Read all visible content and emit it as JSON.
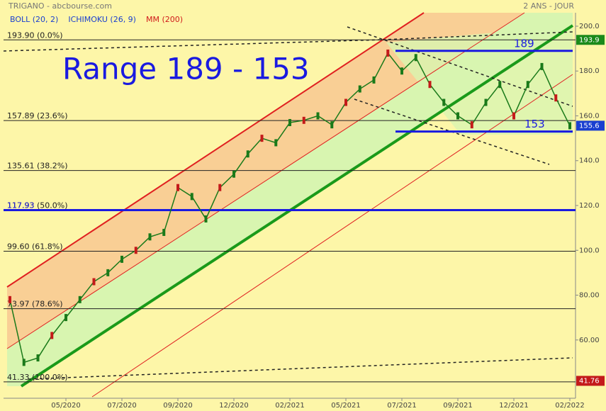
{
  "chart_data": {
    "type": "line",
    "title": "TRIGANO - abcbourse.com",
    "period": "2 ANS - JOUR",
    "indicators": [
      {
        "name": "BOLL (20, 2)",
        "color": "#1a3fd0"
      },
      {
        "name": "ICHIMOKU (26, 9)",
        "color": "#1a3fd0"
      },
      {
        "name": "MM (200)",
        "color": "#d01a1a"
      }
    ],
    "annotation": "Range 189 - 153",
    "categories": [
      "",
      "",
      "",
      "",
      "05/2020",
      "",
      "",
      "",
      "07/2020",
      "",
      "",
      "",
      "09/2020",
      "",
      "",
      "",
      "12/2020",
      "",
      "",
      "",
      "02/2021",
      "",
      "",
      "",
      "05/2021",
      "",
      "",
      "",
      "07/2021",
      "",
      "",
      "",
      "09/2021",
      "",
      "",
      "",
      "12/2021",
      "",
      "",
      "",
      "02/2022"
    ],
    "series": [
      {
        "name": "TRIGANO",
        "color": "#1a7a1a",
        "values": [
          78,
          50,
          52,
          62,
          70,
          78,
          86,
          90,
          96,
          100,
          106,
          108,
          128,
          124,
          114,
          128,
          134,
          143,
          150,
          148,
          157,
          158,
          160,
          156,
          166,
          172,
          176,
          188,
          180,
          186,
          174,
          166,
          160,
          156,
          166,
          174,
          160,
          174,
          182,
          168,
          155.6
        ]
      }
    ],
    "ylim": [
      34,
      206
    ],
    "yticks": [
      {
        "value": 60,
        "label": "60.00"
      },
      {
        "value": 80,
        "label": "80.00"
      },
      {
        "value": 100,
        "label": "100.0"
      },
      {
        "value": 120,
        "label": "120.0"
      },
      {
        "value": 140,
        "label": "140.0"
      },
      {
        "value": 160,
        "label": "160.0"
      },
      {
        "value": 180,
        "label": "180.0"
      },
      {
        "value": 200,
        "label": "200.0"
      }
    ],
    "fib_levels": [
      {
        "value": 193.9,
        "label": "193.90  (0.0%)"
      },
      {
        "value": 157.89,
        "label": "157.89  (23.6%)"
      },
      {
        "value": 135.61,
        "label": "135.61  (38.2%)"
      },
      {
        "value": 117.93,
        "label": "117.93  (50.0%)"
      },
      {
        "value": 99.6,
        "label": "99.60  (61.8%)"
      },
      {
        "value": 73.97,
        "label": "73.97  (78.6%)"
      },
      {
        "value": 41.33,
        "label": "41.33  (100.0%)"
      }
    ],
    "range_lines": [
      {
        "value": 189,
        "label": "189"
      },
      {
        "value": 153,
        "label": "153"
      }
    ],
    "support_line": {
      "value": 117.93,
      "label": "117.93"
    },
    "price_tags": [
      {
        "value": 193.9,
        "label": "193.9",
        "color": "#1a8a1a"
      },
      {
        "value": 155.6,
        "label": "155.6",
        "color": "#1a3fd0"
      },
      {
        "value": 41.76,
        "label": "41.76",
        "color": "#c41a1a"
      }
    ]
  }
}
